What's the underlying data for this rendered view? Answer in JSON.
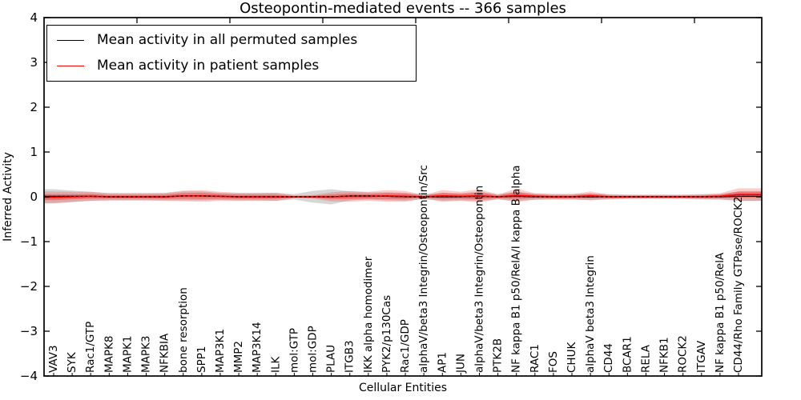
{
  "chart_data": {
    "type": "line",
    "title": "Osteopontin-mediated events -- 366 samples",
    "xlabel": "Cellular Entities",
    "ylabel": "Inferred Activity",
    "ylim": [
      -4,
      4
    ],
    "yticks": [
      "4",
      "3",
      "2",
      "1",
      "0",
      "−1",
      "−2",
      "−3",
      "−4"
    ],
    "ytick_values": [
      4,
      3,
      2,
      1,
      0,
      -1,
      -2,
      -3,
      -4
    ],
    "grid": false,
    "legend_position": "upper left",
    "categories": [
      "VAV3",
      "SYK",
      "Rac1/GTP",
      "MAPK8",
      "MAPK1",
      "MAPK3",
      "NFKBIA",
      "bone resorption",
      "SPP1",
      "MAP3K1",
      "MMP2",
      "MAP3K14",
      "ILK",
      "mol:GTP",
      "mol:GDP",
      "PLAU",
      "ITGB3",
      "IKK alpha homodimer",
      "PYK2/p130Cas",
      "Rac1/GDP",
      "alphaV/beta3 Integrin/Osteopontin/Src",
      "AP1",
      "JUN",
      "alphaV/beta3 Integrin/Osteopontin",
      "PTK2B",
      "NF kappa B1 p50/RelA/I kappa B alpha",
      "RAC1",
      "FOS",
      "CHUK",
      "alphaV beta3 Integrin",
      "CD44",
      "BCAR1",
      "RELA",
      "NFKB1",
      "ROCK2",
      "ITGAV",
      "NF kappa B1 p50/RelA",
      "CD44/Rho Family GTPase/ROCK2"
    ],
    "series": [
      {
        "name": "Mean activity in all permuted samples",
        "color": "#000000",
        "band_color": "#808080",
        "values": [
          0.01,
          0.01,
          0.01,
          0,
          0,
          0,
          0,
          0.02,
          0.02,
          0.01,
          0,
          0,
          0,
          0,
          0,
          0,
          0.02,
          0.02,
          0.01,
          0,
          0,
          0,
          0,
          0.01,
          0,
          0.01,
          0,
          0,
          0,
          0,
          0,
          0,
          0,
          0,
          0,
          0,
          0,
          0.01
        ],
        "band_halfwidth": [
          0.16,
          0.13,
          0.1,
          0.08,
          0.08,
          0.08,
          0.08,
          0.1,
          0.1,
          0.08,
          0.08,
          0.08,
          0.09,
          0.06,
          0.13,
          0.17,
          0.1,
          0.08,
          0.09,
          0.09,
          0.05,
          0.09,
          0.08,
          0.1,
          0.06,
          0.1,
          0.07,
          0.06,
          0.06,
          0.07,
          0.06,
          0.05,
          0.05,
          0.05,
          0.05,
          0.06,
          0.06,
          0.1
        ]
      },
      {
        "name": "Mean activity in patient samples",
        "color": "#ff0000",
        "band_color": "#ff0000",
        "values": [
          -0.01,
          0,
          0.01,
          0,
          0,
          0,
          0,
          0.02,
          0.02,
          0.01,
          0,
          0,
          0,
          0,
          0,
          0,
          0.01,
          0.01,
          0.02,
          0.01,
          0,
          0.02,
          0.01,
          0.02,
          0,
          0.03,
          0.01,
          0,
          0,
          0.02,
          0,
          0,
          0,
          0,
          0,
          0,
          0.01,
          0.05
        ],
        "band_halfwidth": [
          0.13,
          0.11,
          0.1,
          0.08,
          0.08,
          0.08,
          0.09,
          0.12,
          0.13,
          0.1,
          0.09,
          0.09,
          0.09,
          0.03,
          0.04,
          0.1,
          0.12,
          0.1,
          0.13,
          0.12,
          0.04,
          0.13,
          0.1,
          0.15,
          0.05,
          0.15,
          0.07,
          0.06,
          0.06,
          0.1,
          0.05,
          0.04,
          0.04,
          0.04,
          0.04,
          0.05,
          0.07,
          0.14
        ]
      }
    ],
    "legend": {
      "entries": [
        {
          "label": "Mean activity in all permuted samples",
          "color": "#000000"
        },
        {
          "label": "Mean activity in patient samples",
          "color": "#ff0000"
        }
      ]
    }
  }
}
